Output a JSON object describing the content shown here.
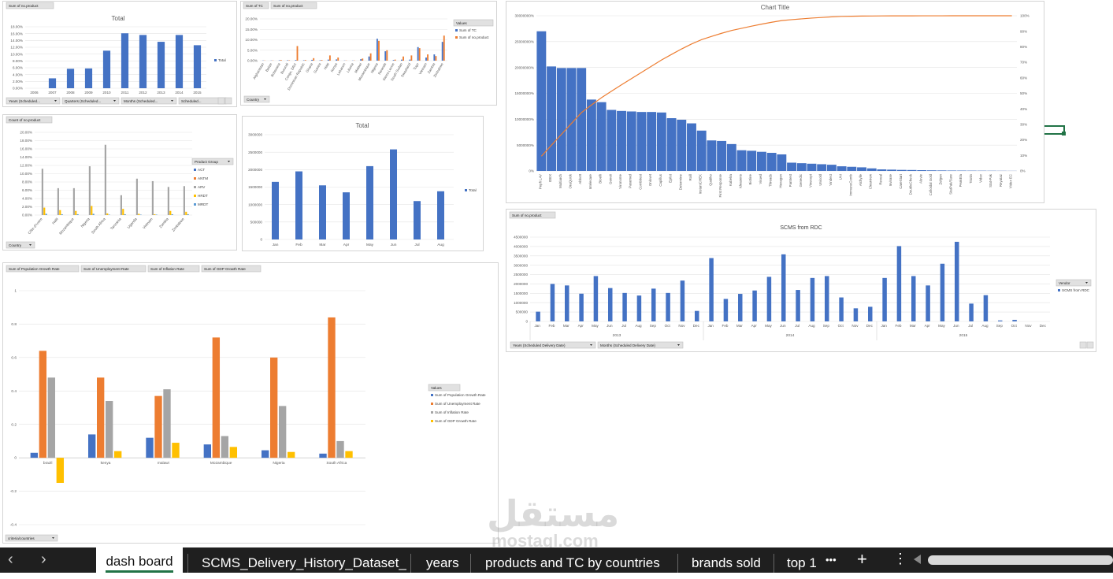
{
  "chart_data": [
    {
      "id": "c1",
      "type": "bar",
      "title": "Total",
      "pivot_fields": [
        "Sum of no.product"
      ],
      "categories": [
        "2006",
        "2007",
        "2008",
        "2009",
        "2010",
        "2011",
        "2012",
        "2013",
        "2014",
        "2015"
      ],
      "series": [
        {
          "name": "Total",
          "values": [
            0,
            2.9,
            5.7,
            5.8,
            11.0,
            16.1,
            15.6,
            13.6,
            15.6,
            12.6
          ]
        }
      ],
      "ylim": [
        0,
        18
      ],
      "yticks": [
        "0.00%",
        "2.00%",
        "4.00%",
        "6.00%",
        "8.00%",
        "10.00%",
        "12.00%",
        "14.00%",
        "16.00%",
        "18.00%"
      ],
      "filters": [
        "Years (Scheduled...",
        "Quarters (Scheduled...",
        "Months (Scheduled...",
        "Scheduled..."
      ],
      "legend": "right",
      "color": "#4472C4"
    },
    {
      "id": "c2",
      "type": "bar",
      "title": "",
      "pivot_fields": [
        "Sum of TC",
        "Sum of no.product"
      ],
      "categories": [
        "Afghanistan",
        "Belize",
        "Botswana",
        "Burundi",
        "Congo, DRC",
        "Dominican Republic",
        "Ghana",
        "Guinea",
        "Haiti",
        "Kenya",
        "Lebanon",
        "Liberia",
        "Malawi",
        "Mozambique",
        "Nigeria",
        "Rwanda",
        "Sierra Leone",
        "South Sudan",
        "Swaziland",
        "Togo",
        "Vietnam",
        "Zambia",
        "Zimbabwe"
      ],
      "series": [
        {
          "name": "Sum of TC",
          "values": [
            0.1,
            0.1,
            0.2,
            0.2,
            0.3,
            0.2,
            0.4,
            0.2,
            0.5,
            0.6,
            0.1,
            0.1,
            0.7,
            2.0,
            10.5,
            4.5,
            0.3,
            0.5,
            0.5,
            6.5,
            1.5,
            3.0,
            9.0
          ]
        },
        {
          "name": "Sum of no.product",
          "values": [
            0.1,
            0.1,
            0.3,
            0.2,
            7.0,
            0.3,
            1.2,
            0.3,
            2.5,
            1.5,
            0.1,
            0.1,
            1.0,
            3.5,
            9.5,
            5.0,
            0.5,
            2.0,
            2.5,
            6.0,
            3.0,
            2.2,
            12.0
          ]
        }
      ],
      "ylim": [
        0,
        20
      ],
      "yticks": [
        "0.00%",
        "5.00%",
        "10.00%",
        "15.00%",
        "20.00%"
      ],
      "legend_title": "Values",
      "filters": [
        "Country"
      ],
      "colors": [
        "#4472C4",
        "#ED7D31"
      ]
    },
    {
      "id": "c3",
      "type": "bar",
      "title": "",
      "pivot_fields": [
        "Count of no.product"
      ],
      "categories": [
        "Côte d'Ivoire",
        "Haiti",
        "Mozambique",
        "Nigeria",
        "South Africa",
        "Tanzania",
        "Uganda",
        "Vietnam",
        "Zambia",
        "Zimbabwe"
      ],
      "series": [
        {
          "name": "ACT",
          "values": [
            0,
            0,
            0,
            0,
            0,
            0,
            0,
            0,
            0,
            0
          ]
        },
        {
          "name": "ANTM",
          "values": [
            0,
            0,
            0,
            0,
            0,
            0,
            0,
            0,
            0,
            0
          ]
        },
        {
          "name": "ARV",
          "values": [
            11.2,
            6.5,
            6.5,
            11.8,
            17.0,
            4.8,
            8.8,
            8.2,
            6.8,
            7.0
          ]
        },
        {
          "name": "HRDT",
          "values": [
            1.8,
            1.2,
            1.0,
            2.2,
            0.4,
            1.5,
            0.3,
            0.2,
            1.0,
            0.8
          ]
        },
        {
          "name": "MRDT",
          "values": [
            0.3,
            0.2,
            0.2,
            0.3,
            0.1,
            0.2,
            0.1,
            0.1,
            0.2,
            0.2
          ]
        }
      ],
      "ylim": [
        0,
        20
      ],
      "yticks": [
        "0.00%",
        "2.00%",
        "4.00%",
        "6.00%",
        "8.00%",
        "10.00%",
        "12.00%",
        "14.00%",
        "16.00%",
        "18.00%",
        "20.00%"
      ],
      "legend_title": "Product Group",
      "filters": [
        "Country"
      ],
      "colors": [
        "#4472C4",
        "#ED7D31",
        "#A5A5A5",
        "#FFC000",
        "#5B9BD5"
      ]
    },
    {
      "id": "c4",
      "type": "bar",
      "title": "Total",
      "categories": [
        "Jan",
        "Feb",
        "Mar",
        "Apr",
        "May",
        "Jun",
        "Jul",
        "Aug"
      ],
      "series": [
        {
          "name": "Total",
          "values": [
            1650000,
            1950000,
            1550000,
            1350000,
            2100000,
            2580000,
            1100000,
            1380000
          ]
        }
      ],
      "ylim": [
        0,
        3000000
      ],
      "yticks": [
        "0",
        "500000",
        "1000000",
        "1500000",
        "2000000",
        "2500000",
        "3000000"
      ],
      "legend": "right",
      "color": "#4472C4"
    },
    {
      "id": "c5",
      "type": "bar",
      "title": "Chart Title",
      "categories": [
        "Pepfi LAV",
        "IDEX",
        "Multiarch",
        "OraQuick",
        "Abbott",
        "Intelecare",
        "Bioelli",
        "Geneti",
        "Vironome",
        "Paramed",
        "Combitest",
        "Onlovet",
        "Capillus",
        "Epilot",
        "Determine",
        "Roill",
        "InstantCHEK",
        "Qualiko",
        "First Response",
        "Kabelra",
        "Ideasens",
        "Biotine",
        "Virued",
        "Threads",
        "Hexagon",
        "Pantrest",
        "Genedic",
        "Vinecopt",
        "Unicold",
        "Vindect",
        "UAI",
        "ImmunoComb",
        "Alchylle",
        "Clearview",
        "Reveal",
        "Invirase",
        "CareStart",
        "DoubleCheck",
        "Aluvie",
        "Colloidal Gold",
        "Zelgen",
        "StatPak/Sure",
        "PeakEla",
        "Triotin",
        "Videx",
        "Stat-Pak",
        "Reyataz",
        "Videx EC"
      ],
      "series": [
        {
          "name": "value",
          "values": [
            27000000,
            20200000,
            19900000,
            19900000,
            19900000,
            13800000,
            13300000,
            11800000,
            11600000,
            11500000,
            11400000,
            11400000,
            11300000,
            10200000,
            9900000,
            9200000,
            7800000,
            5900000,
            5800000,
            5200000,
            4000000,
            3900000,
            3700000,
            3500000,
            3200000,
            1600000,
            1500000,
            1400000,
            1300000,
            1200000,
            900000,
            800000,
            700000,
            500000,
            300000,
            250000,
            200000,
            180000,
            150000,
            120000,
            100000,
            80000,
            70000,
            60000,
            50000,
            40000,
            30000,
            20000
          ]
        },
        {
          "name": "cumulative %",
          "axis": "secondary",
          "values": [
            9.5,
            16.6,
            23.6,
            30.6,
            37.6,
            42.5,
            47.2,
            51.4,
            55.5,
            59.5,
            63.5,
            67.5,
            71.5,
            75.1,
            78.6,
            81.8,
            84.6,
            86.7,
            88.7,
            90.5,
            91.9,
            93.3,
            94.6,
            95.8,
            96.9,
            97.5,
            98.0,
            98.5,
            98.9,
            99.3,
            99.6,
            99.7,
            99.8,
            99.85,
            99.9,
            99.92,
            99.94,
            99.95,
            99.96,
            99.97,
            99.98,
            99.985,
            99.99,
            99.993,
            99.995,
            99.997,
            99.999,
            100
          ]
        }
      ],
      "ylim": [
        0,
        30000000
      ],
      "yticks": [
        "0%",
        "5000000%",
        "10000000%",
        "15000000%",
        "20000000%",
        "25000000%",
        "30000000%"
      ],
      "y2ticks": [
        "0%",
        "10%",
        "20%",
        "30%",
        "40%",
        "50%",
        "60%",
        "70%",
        "80%",
        "90%",
        "100%"
      ],
      "colors": [
        "#4472C4",
        "#ED7D31"
      ]
    },
    {
      "id": "c6",
      "type": "bar",
      "title": "SCMS from RDC",
      "pivot_fields": [
        "Sum of no.product"
      ],
      "categories": [
        "Jan",
        "Feb",
        "Mar",
        "Apr",
        "May",
        "Jun",
        "Jul",
        "Aug",
        "Sep",
        "Oct",
        "Nov",
        "Dec",
        "Jan",
        "Feb",
        "Mar",
        "Apr",
        "May",
        "Jun",
        "Jul",
        "Aug",
        "Sep",
        "Oct",
        "Nov",
        "Dec",
        "Jan",
        "Feb",
        "Mar",
        "Apr",
        "May",
        "Jun",
        "Jul",
        "Aug",
        "Sep",
        "Oct",
        "Nov",
        "Dec"
      ],
      "groups": [
        "2013",
        "2014",
        "2015"
      ],
      "series": [
        {
          "name": "SCMS from RDC",
          "values": [
            520000,
            2000000,
            1920000,
            1480000,
            2420000,
            1780000,
            1520000,
            1380000,
            1750000,
            1520000,
            2180000,
            560000,
            3380000,
            1200000,
            1470000,
            1650000,
            2380000,
            3580000,
            1680000,
            2320000,
            2420000,
            1280000,
            700000,
            780000,
            2320000,
            4020000,
            2420000,
            1920000,
            3080000,
            4250000,
            950000,
            1400000,
            50000,
            80000,
            0,
            0
          ]
        }
      ],
      "ylim": [
        0,
        4500000
      ],
      "yticks": [
        "0",
        "500000",
        "1000000",
        "1500000",
        "2000000",
        "2500000",
        "3000000",
        "3500000",
        "4000000",
        "4500000"
      ],
      "legend_title": "Vendor",
      "filters": [
        "Years (Scheduled Delivery Date)",
        "Months (Scheduled Delivery Date)"
      ],
      "color": "#4472C4"
    },
    {
      "id": "c7",
      "type": "bar",
      "title": "",
      "pivot_fields": [
        "Sum of Population Growth Rate",
        "Sum of Unemployment Rate",
        "Sum of Inflation Rate",
        "Sum of GDP Growth Rate"
      ],
      "categories": [
        "brazil",
        "kenya",
        "malawi",
        "Mozambique",
        "Nigeria",
        "South Africa"
      ],
      "series": [
        {
          "name": "Sum of Population Growth Rate",
          "values": [
            0.03,
            0.14,
            0.12,
            0.08,
            0.045,
            0.025
          ]
        },
        {
          "name": "Sum of Unemployment Rate",
          "values": [
            0.64,
            0.48,
            0.37,
            0.72,
            0.6,
            0.84
          ]
        },
        {
          "name": "Sum of Inflation Rate",
          "values": [
            0.48,
            0.34,
            0.41,
            0.13,
            0.31,
            0.1
          ]
        },
        {
          "name": "Sum of GDP Growth Rate",
          "values": [
            -0.15,
            0.04,
            0.09,
            0.065,
            0.035,
            0.04
          ]
        }
      ],
      "ylim": [
        -0.4,
        1
      ],
      "yticks": [
        "-0.4",
        "-0.2",
        "0",
        "0.2",
        "0.4",
        "0.6",
        "0.8",
        "1"
      ],
      "legend_title": "Values",
      "filters": [
        "criteria/countries"
      ],
      "colors": [
        "#4472C4",
        "#ED7D31",
        "#A5A5A5",
        "#FFC000"
      ]
    }
  ],
  "tabs": [
    "dash board",
    "SCMS_Delivery_History_Dataset_",
    "years",
    "products and TC by countries",
    "brands sold",
    "top 1"
  ],
  "tab_more": "•••",
  "tab_add": "+",
  "watermark": {
    "text": "مستقل",
    "domain": "mostaql.com"
  }
}
